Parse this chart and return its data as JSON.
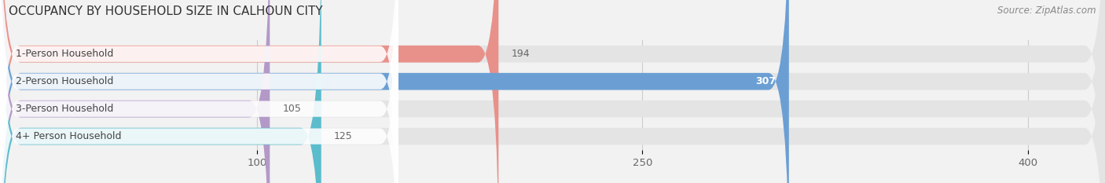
{
  "title": "OCCUPANCY BY HOUSEHOLD SIZE IN CALHOUN CITY",
  "source": "Source: ZipAtlas.com",
  "categories": [
    "1-Person Household",
    "2-Person Household",
    "3-Person Household",
    "4+ Person Household"
  ],
  "values": [
    194,
    307,
    105,
    125
  ],
  "bar_colors": [
    "#e8918a",
    "#6b9fd4",
    "#b399c8",
    "#5bbccc"
  ],
  "xlim": [
    0,
    430
  ],
  "xticks": [
    100,
    250,
    400
  ],
  "background_color": "#f2f2f2",
  "bar_bg_color": "#e4e4e4",
  "title_fontsize": 11,
  "source_fontsize": 8.5,
  "label_fontsize": 9,
  "tick_fontsize": 9.5,
  "bar_height": 0.62,
  "figsize": [
    14.06,
    2.33
  ],
  "dpi": 100
}
